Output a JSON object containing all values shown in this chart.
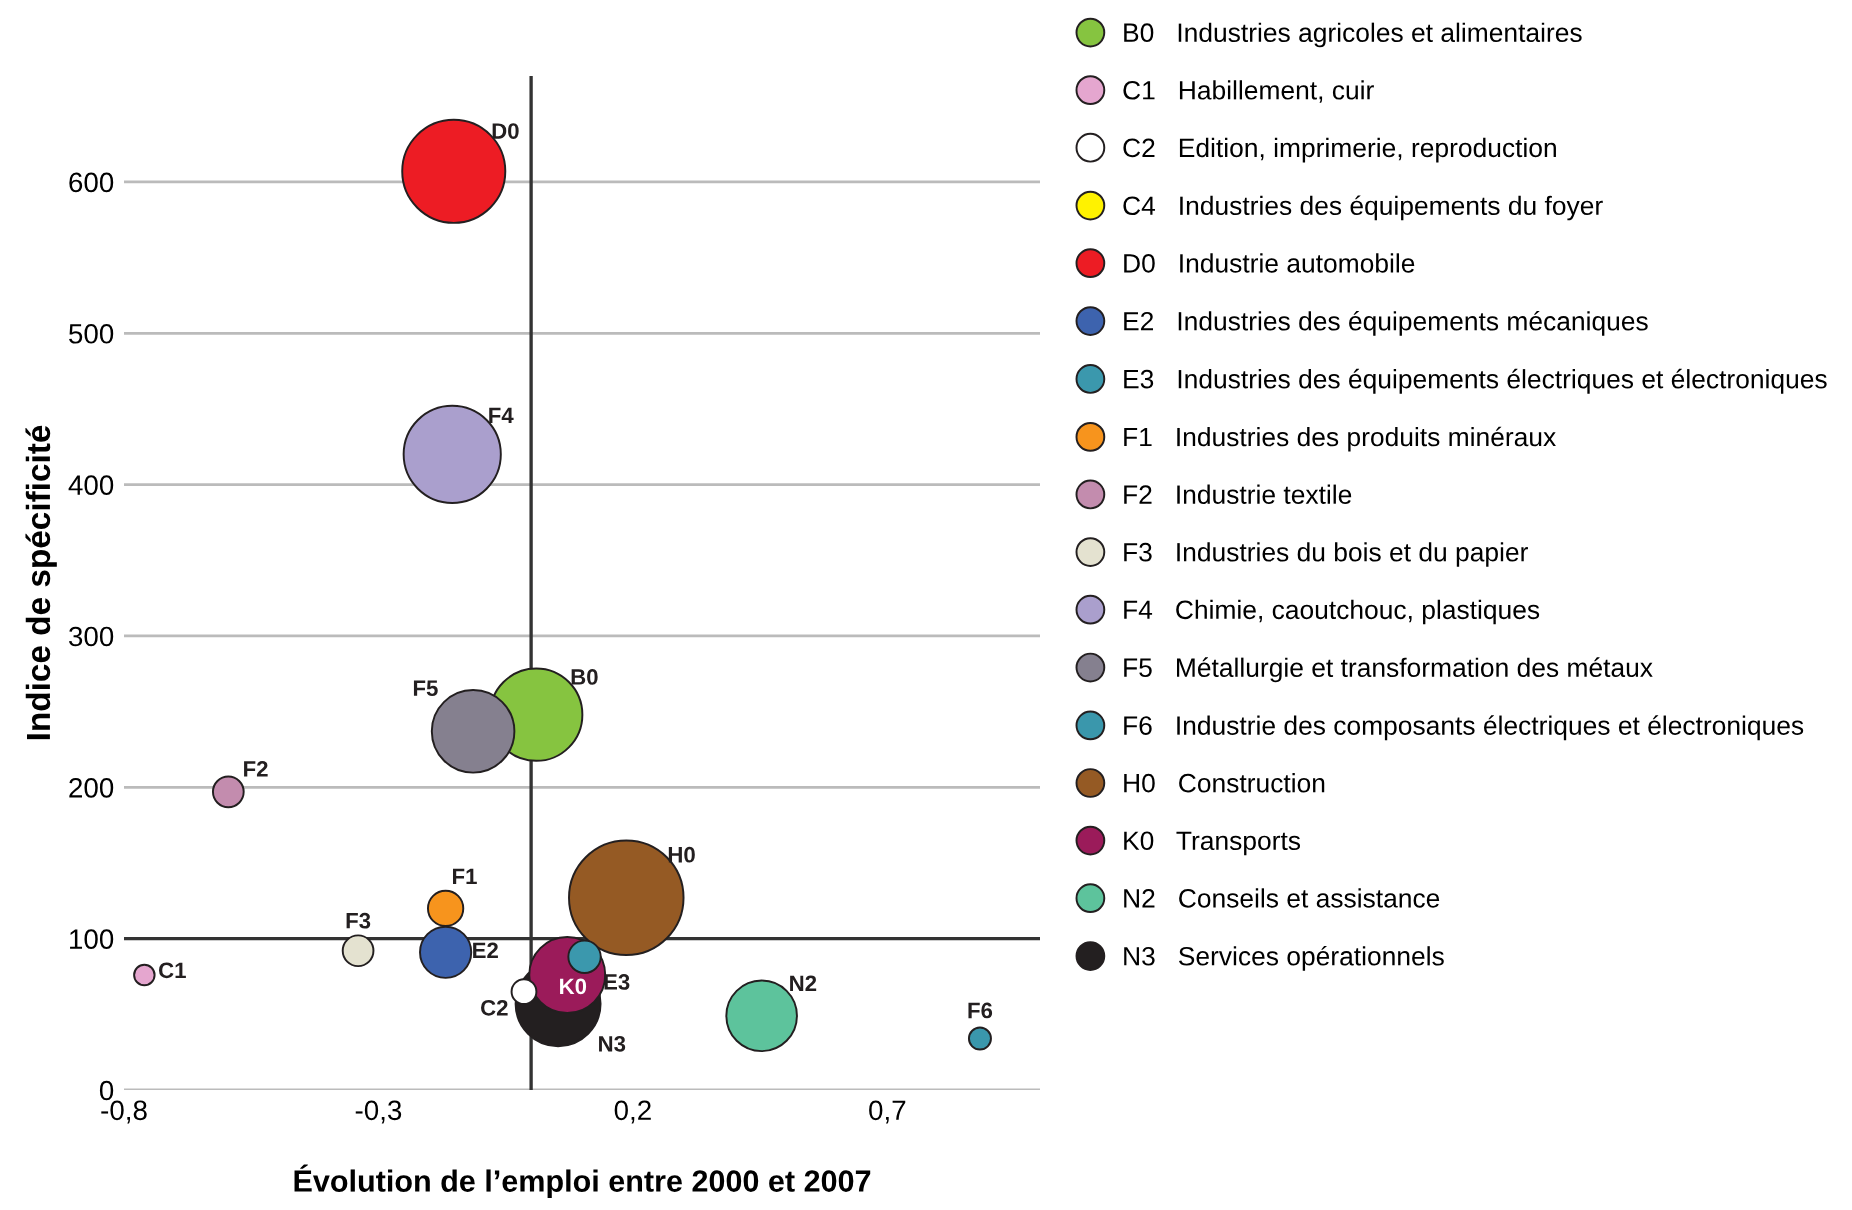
{
  "chart_data": {
    "type": "bubble",
    "xlabel": "Évolution de l’emploi entre 2000 et 2007",
    "ylabel": "Indice de spécificité",
    "xlim": [
      -0.8,
      1.0
    ],
    "xticks": [
      {
        "value": -0.8,
        "label": "-0,8"
      },
      {
        "value": -0.3,
        "label": "-0,3"
      },
      {
        "value": 0.2,
        "label": "0,2"
      },
      {
        "value": 0.7,
        "label": "0,7"
      }
    ],
    "ylim": [
      0,
      670
    ],
    "yticks": [
      0,
      100,
      200,
      300,
      400,
      500,
      600
    ],
    "grid": "y",
    "legend": "right",
    "ref_lines": [
      {
        "axis": "x",
        "value": 0,
        "color": "#333333"
      },
      {
        "axis": "y",
        "value": 100,
        "color": "#333333"
      }
    ],
    "series": [
      {
        "name": "B0   Industries agricoles et alimentaires",
        "color": "#86c440",
        "x": [
          0.01
        ],
        "values": [
          248
        ],
        "sizes": [
          0.65
        ]
      },
      {
        "name": "C1   Habillement, cuir",
        "color": "#e5a6cf",
        "x": [
          -0.76
        ],
        "values": [
          76
        ],
        "sizes": [
          0.032
        ]
      },
      {
        "name": "C2   Edition, imprimerie, reproduction",
        "color": "#ffffff",
        "x": [
          -0.014
        ],
        "values": [
          65
        ],
        "sizes": [
          0.047
        ]
      },
      {
        "name": "C4   Industries des équipements du foyer",
        "color": "#fff200",
        "x": [
          null
        ],
        "values": [
          null
        ],
        "sizes": [
          null
        ]
      },
      {
        "name": "D0   Industrie automobile",
        "color": "#ed1c24",
        "x": [
          -0.152
        ],
        "values": [
          607
        ],
        "sizes": [
          0.81
        ]
      },
      {
        "name": "E2   Industries des équipements mécaniques",
        "color": "#3d63ae",
        "x": [
          -0.168
        ],
        "values": [
          91
        ],
        "sizes": [
          0.2
        ]
      },
      {
        "name": "E3   Industries des équipements électriques et électroniques",
        "color": "#3b98ad",
        "x": [
          0.105
        ],
        "values": [
          88
        ],
        "sizes": [
          0.08
        ]
      },
      {
        "name": "F1   Industries des produits minéraux",
        "color": "#f7941d",
        "x": [
          -0.168
        ],
        "values": [
          120
        ],
        "sizes": [
          0.095
        ]
      },
      {
        "name": "F2   Industrie textile",
        "color": "#c38cae",
        "x": [
          -0.595
        ],
        "values": [
          197
        ],
        "sizes": [
          0.072
        ]
      },
      {
        "name": "F3   Industries du bois et du papier",
        "color": "#e4e2d0",
        "x": [
          -0.34
        ],
        "values": [
          92
        ],
        "sizes": [
          0.072
        ]
      },
      {
        "name": "F4   Chimie, caoutchouc, plastiques",
        "color": "#aa9fcd",
        "x": [
          -0.155
        ],
        "values": [
          420
        ],
        "sizes": [
          0.72
        ]
      },
      {
        "name": "F5   Métallurgie et transformation des métaux",
        "color": "#85808f",
        "x": [
          -0.114
        ],
        "values": [
          237
        ],
        "sizes": [
          0.52
        ]
      },
      {
        "name": "F6   Industrie des composants électriques et électroniques",
        "color": "#3a97ac",
        "x": [
          0.882
        ],
        "values": [
          34
        ],
        "sizes": [
          0.037
        ]
      },
      {
        "name": "H0   Construction",
        "color": "#955a24",
        "x": [
          0.187
        ],
        "values": [
          127
        ],
        "sizes": [
          1
        ]
      },
      {
        "name": "K0   Transports",
        "color": "#9b1b5a",
        "x": [
          0.071
        ],
        "values": [
          76
        ],
        "sizes": [
          0.44
        ]
      },
      {
        "name": "N2   Conseils et assistance",
        "color": "#5dc39c",
        "x": [
          0.453
        ],
        "values": [
          49
        ],
        "sizes": [
          0.38
        ]
      },
      {
        "name": "N3   Services opérationnels",
        "color": "#231f20",
        "x": [
          0.053
        ],
        "values": [
          57
        ],
        "sizes": [
          0.55
        ]
      }
    ],
    "annotations": [
      {
        "text": "B0",
        "x": 0.01,
        "y": 248
      },
      {
        "text": "C1",
        "x": -0.76,
        "y": 76
      },
      {
        "text": "C2",
        "x": -0.014,
        "y": 65
      },
      {
        "text": "D0",
        "x": -0.152,
        "y": 607
      },
      {
        "text": "E2",
        "x": -0.168,
        "y": 91
      },
      {
        "text": "E3",
        "x": 0.105,
        "y": 88
      },
      {
        "text": "F1",
        "x": -0.168,
        "y": 120
      },
      {
        "text": "F2",
        "x": -0.595,
        "y": 197
      },
      {
        "text": "F3",
        "x": -0.34,
        "y": 92
      },
      {
        "text": "F4",
        "x": -0.155,
        "y": 420
      },
      {
        "text": "F5",
        "x": -0.114,
        "y": 237
      },
      {
        "text": "F6",
        "x": 0.882,
        "y": 34
      },
      {
        "text": "H0",
        "x": 0.187,
        "y": 127
      },
      {
        "text": "K0",
        "x": 0.071,
        "y": 76
      },
      {
        "text": "N2",
        "x": 0.453,
        "y": 49
      },
      {
        "text": "N3",
        "x": 0.053,
        "y": 57
      }
    ]
  }
}
